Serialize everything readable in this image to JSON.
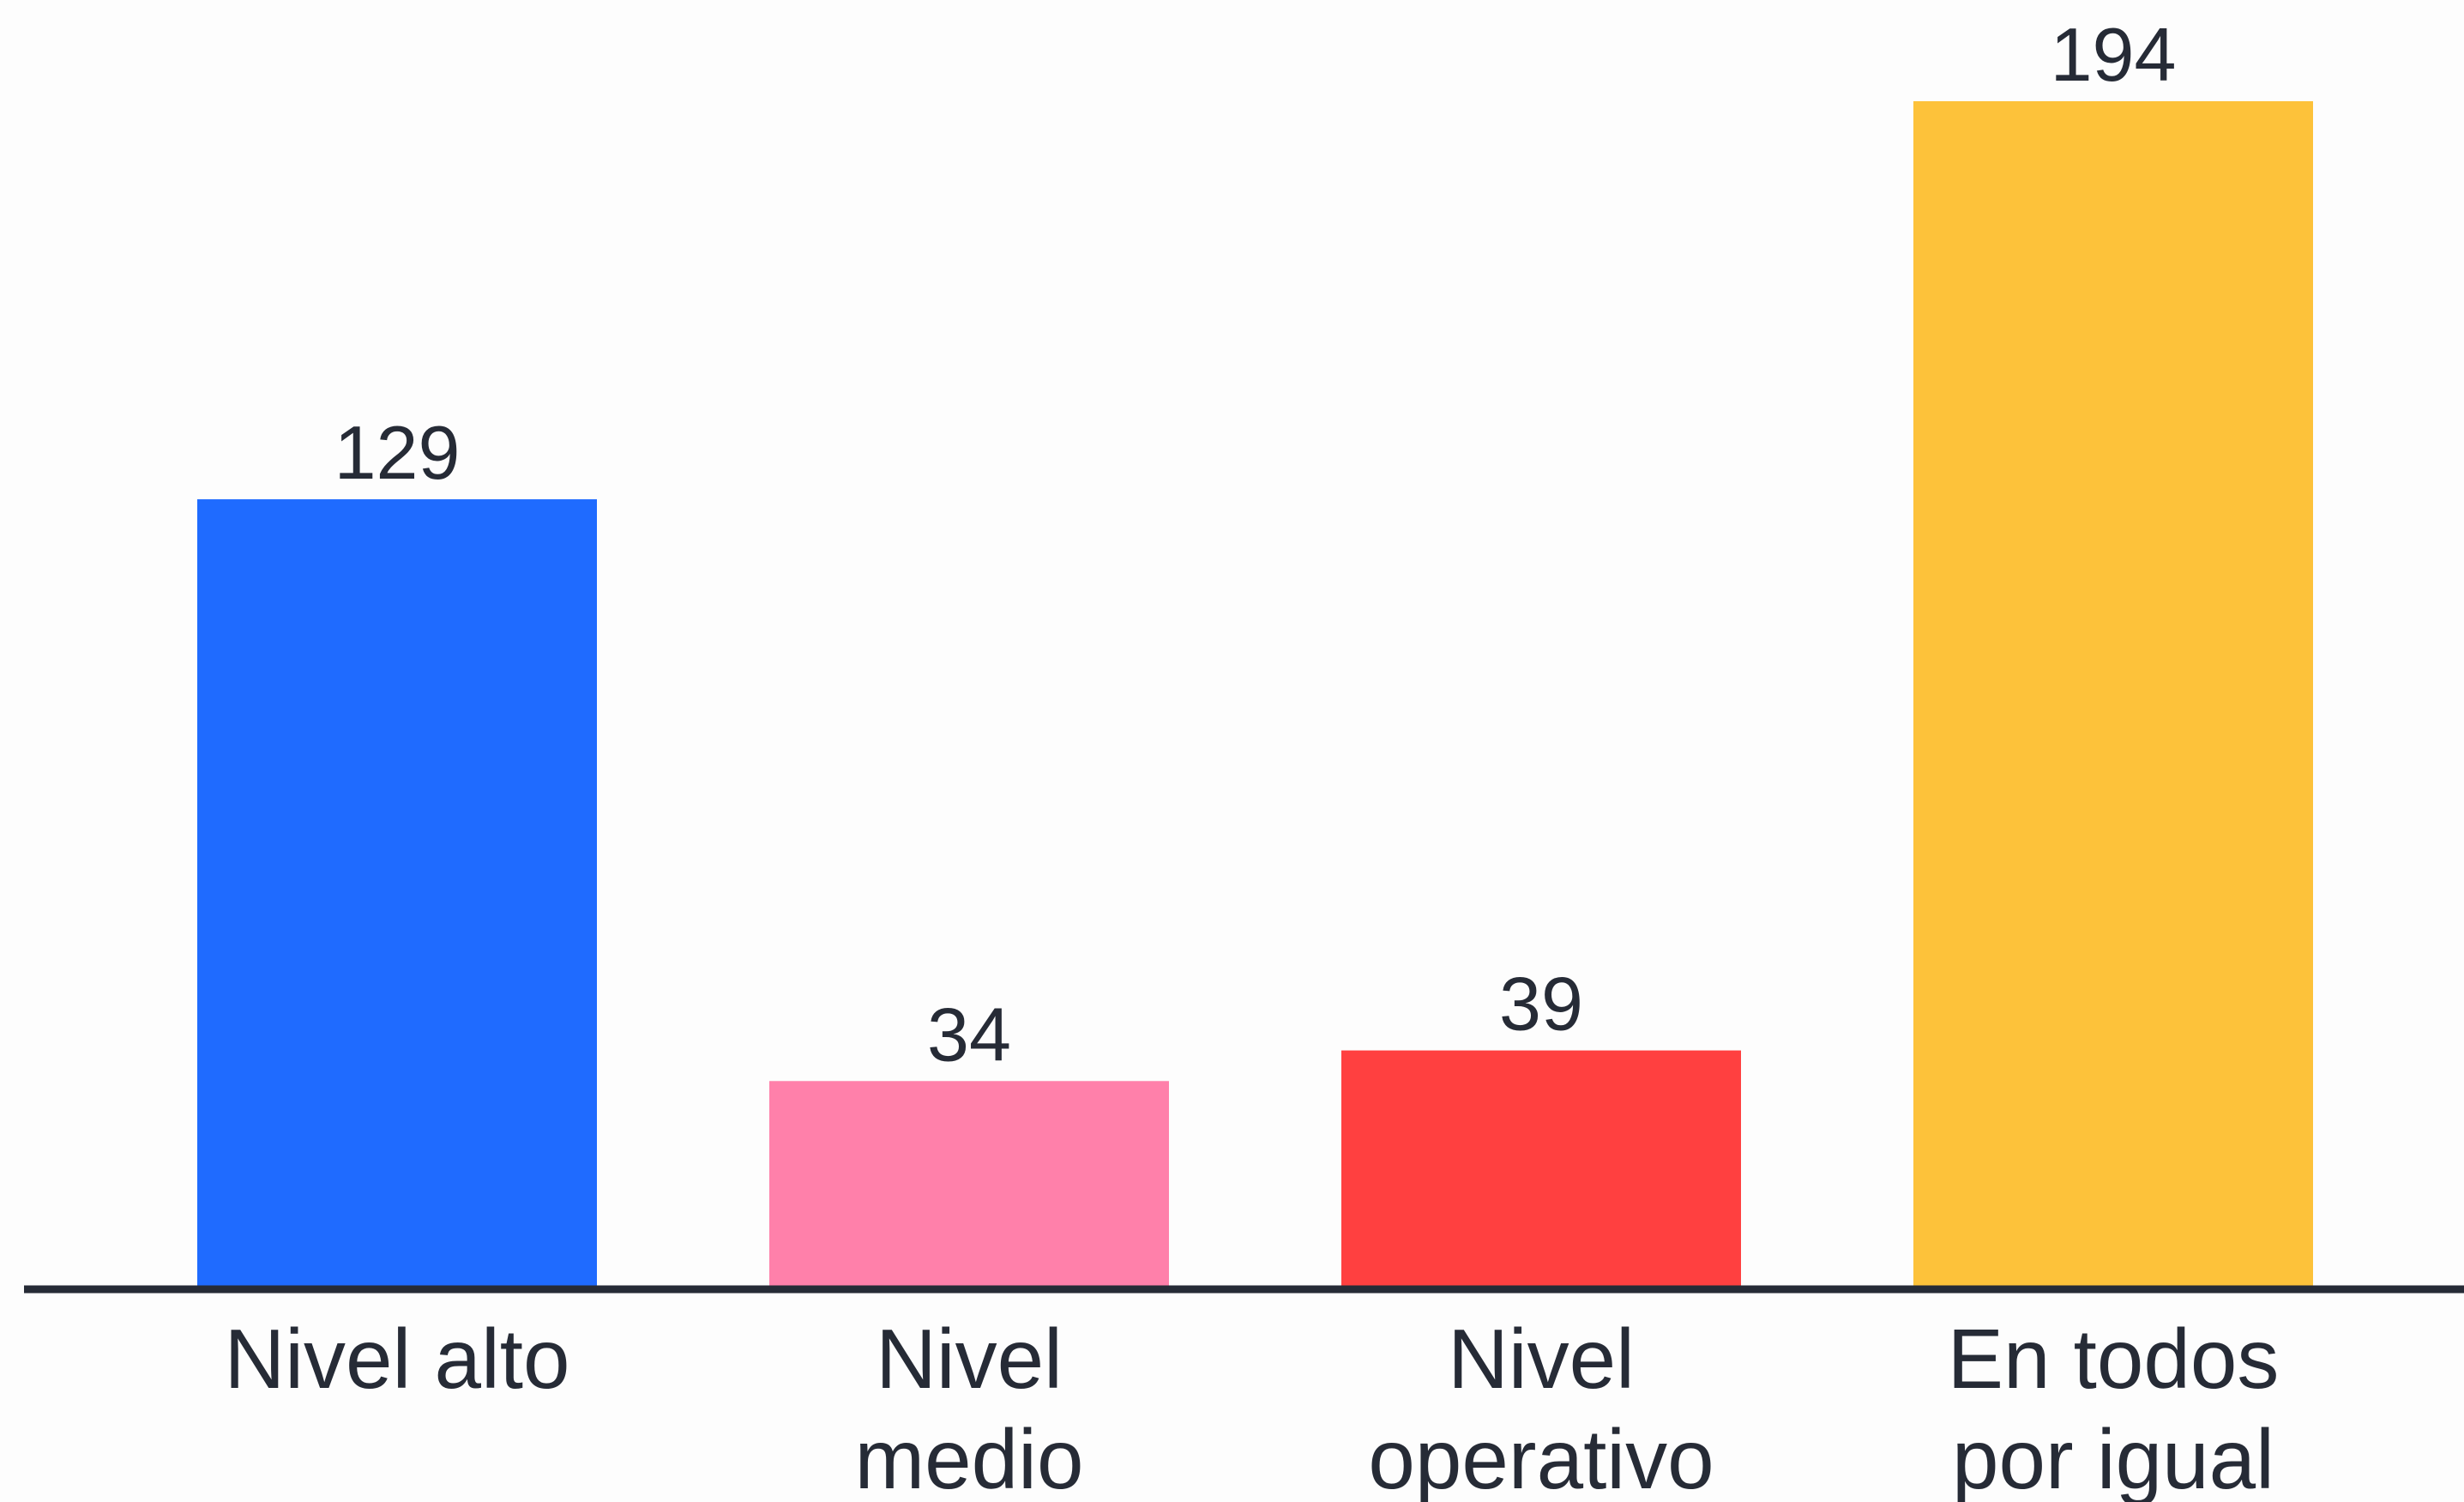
{
  "chart_data": {
    "type": "bar",
    "categories": [
      [
        "Nivel alto"
      ],
      [
        "Nivel",
        "medio"
      ],
      [
        "Nivel",
        "operativo"
      ],
      [
        "En todos",
        "por igual"
      ]
    ],
    "values": [
      129,
      34,
      39,
      194
    ],
    "colors": [
      "#1f6bff",
      "#ff80aa",
      "#ff4040",
      "#fdc23a"
    ],
    "axis_color": "#262b36",
    "title": "",
    "xlabel": "",
    "ylabel": "",
    "ylim": [
      0,
      194
    ],
    "grid": false,
    "legend": "none"
  }
}
